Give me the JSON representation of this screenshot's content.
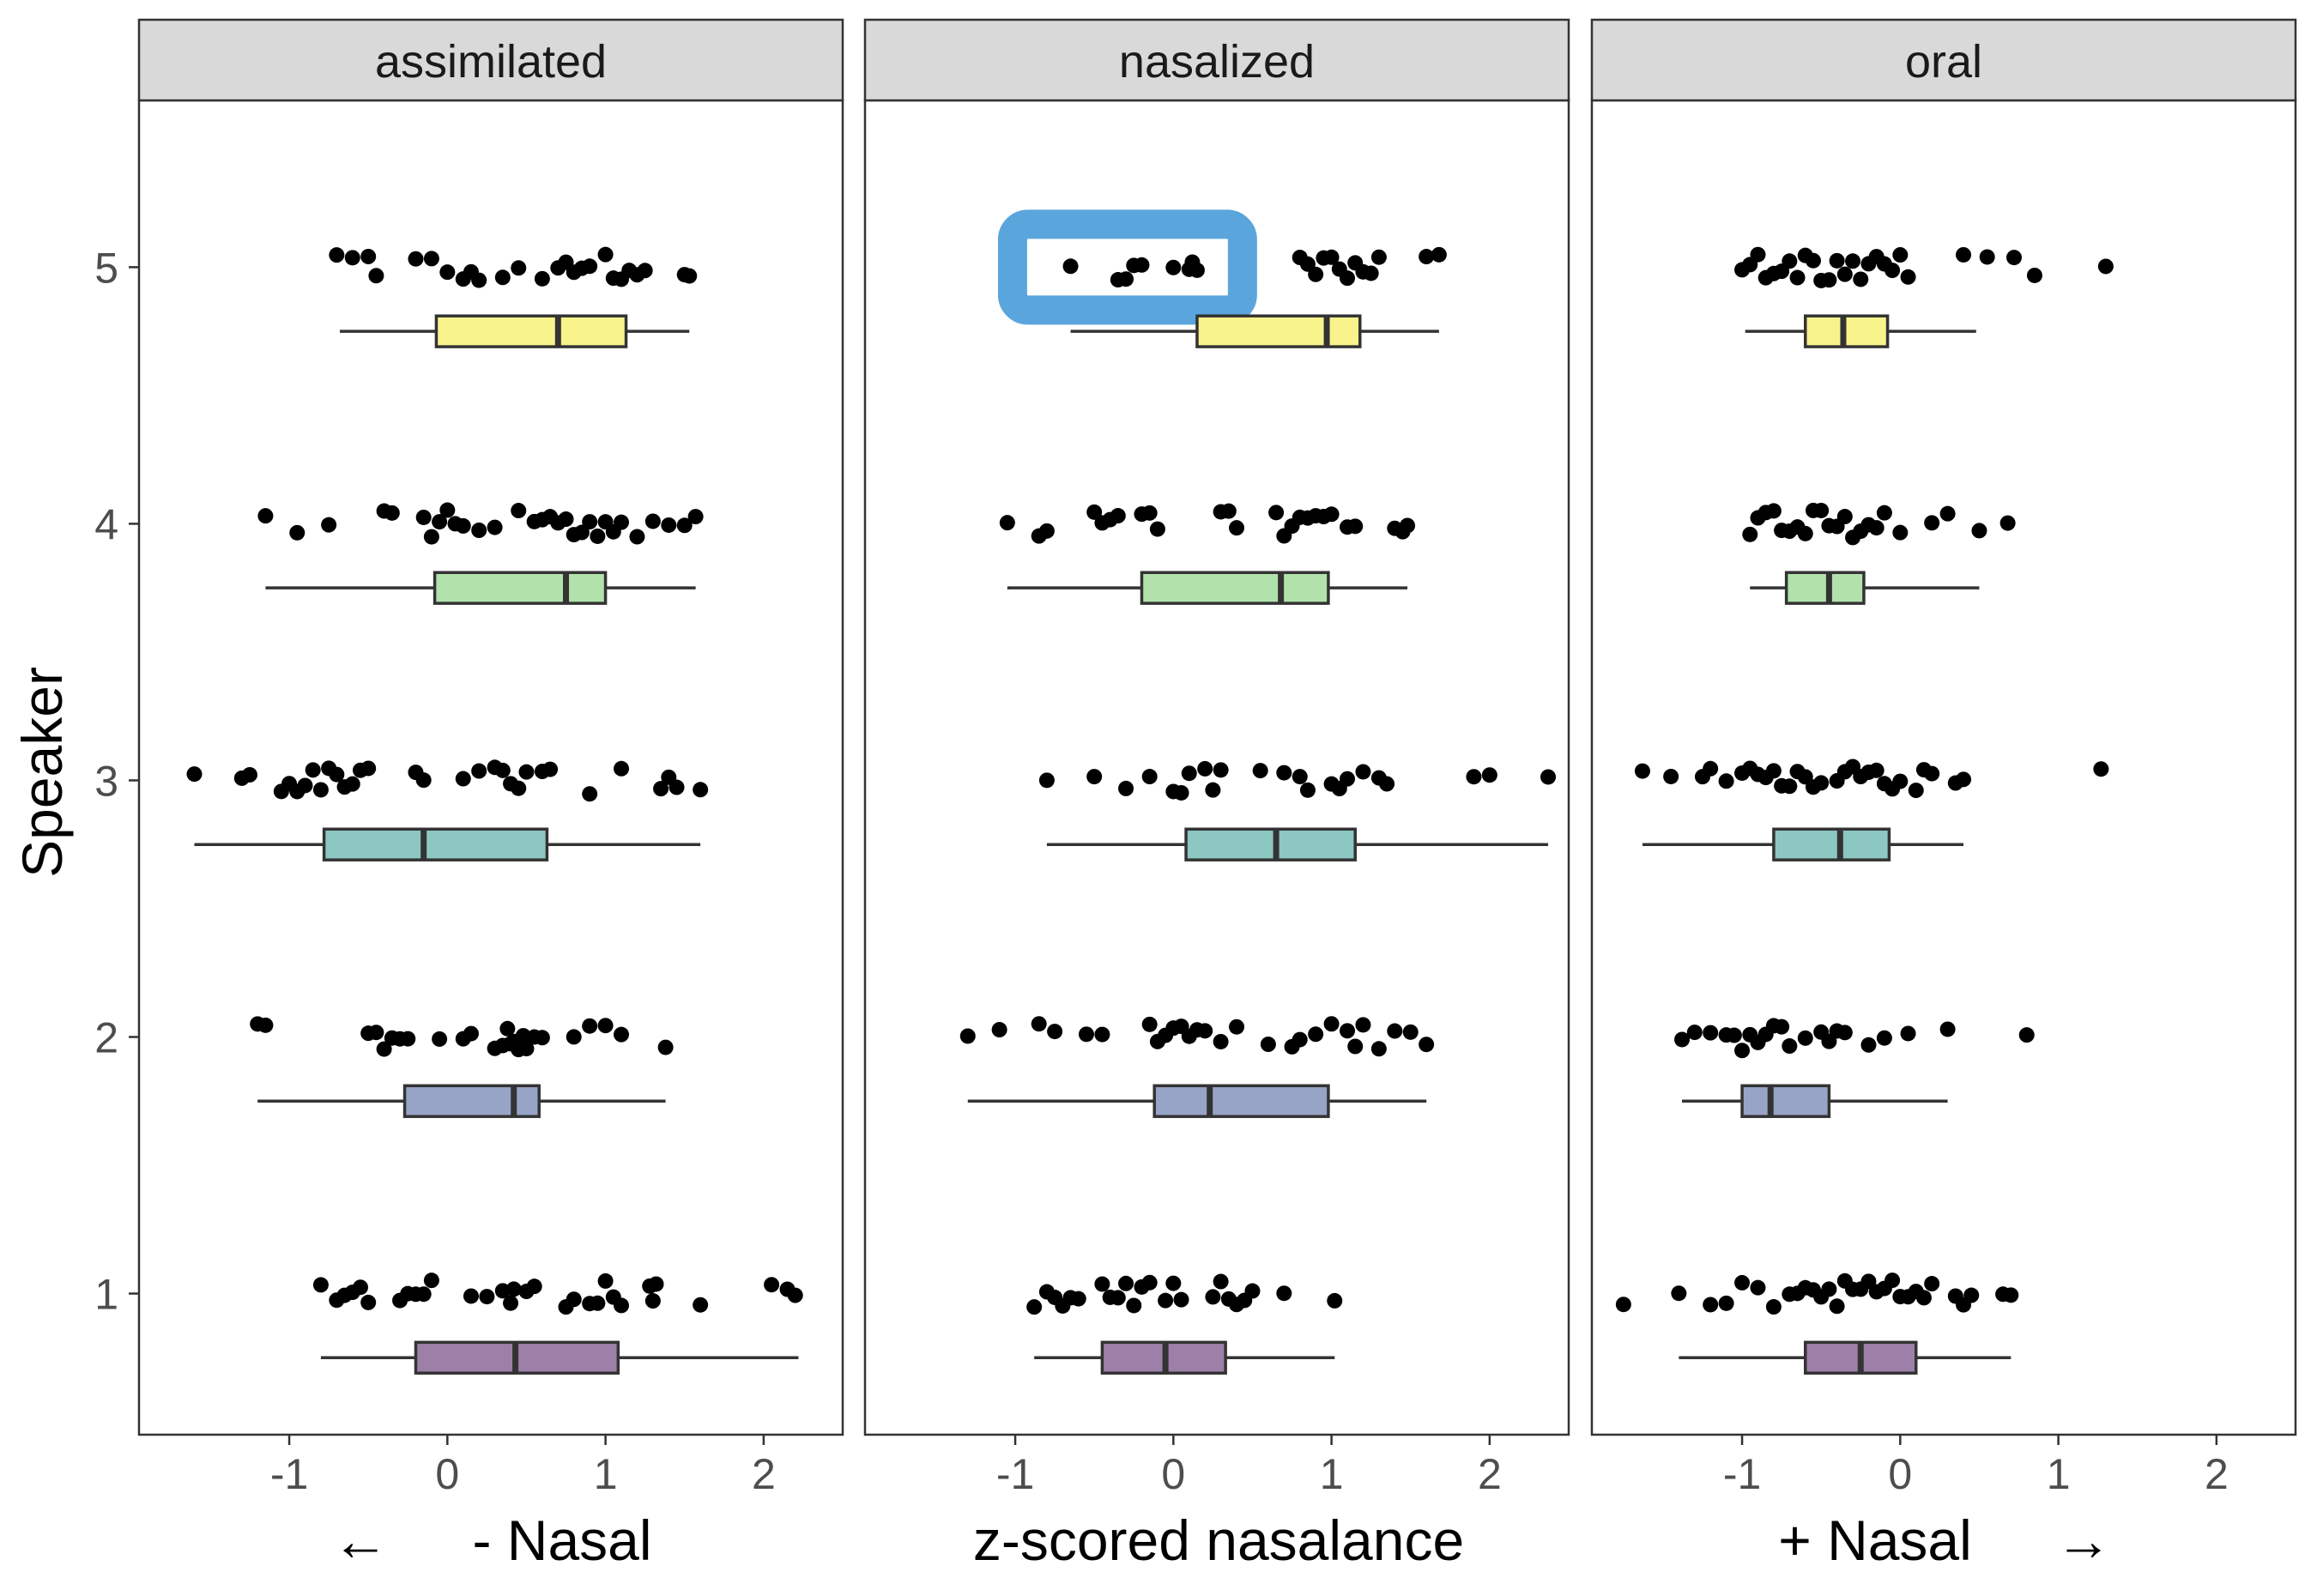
{
  "chart_data": {
    "type": "box",
    "orientation": "horizontal",
    "ylabel": "Speaker",
    "xlabel": "z-scored nasalance",
    "xlabel_left": "- Nasal",
    "xlabel_right": "+ Nasal",
    "arrow_left": "←",
    "arrow_right": "→",
    "xlim": [
      -1.95,
      2.5
    ],
    "ylim": [
      0.45,
      5.65
    ],
    "x_ticks": [
      "-1",
      "0",
      "1",
      "2"
    ],
    "x_tick_values": [
      -1,
      0,
      1,
      2
    ],
    "y_ticks": [
      "1",
      "2",
      "3",
      "4",
      "5"
    ],
    "y_tick_values": [
      1,
      2,
      3,
      4,
      5
    ],
    "grid": false,
    "speaker_colors": {
      "1": "#9e7fa8",
      "2": "#98a4c6",
      "3": "#8cc7c2",
      "4": "#b1e2ac",
      "5": "#f8f38b"
    },
    "highlight": {
      "panel": "nasalized",
      "speaker": 5,
      "x_range": [
        -0.8,
        0.22
      ],
      "color": "#5aa6dc"
    },
    "panels": [
      {
        "name": "assimilated",
        "speakers": [
          {
            "speaker": 1,
            "box": {
              "min": -0.8,
              "q1": -0.2,
              "median": 0.43,
              "q3": 1.08,
              "max": 2.22
            },
            "points": [
              -0.8,
              -0.7,
              -0.65,
              -0.6,
              -0.55,
              -0.5,
              -0.3,
              -0.25,
              -0.2,
              -0.15,
              -0.1,
              0.15,
              0.25,
              0.35,
              0.4,
              0.42,
              0.5,
              0.55,
              0.75,
              0.8,
              0.9,
              0.95,
              1.0,
              1.05,
              1.1,
              1.28,
              1.3,
              1.32,
              1.6,
              2.05,
              2.15,
              2.2
            ]
          },
          {
            "speaker": 2,
            "box": {
              "min": -1.2,
              "q1": -0.27,
              "median": 0.42,
              "q3": 0.58,
              "max": 1.38
            },
            "points": [
              -1.2,
              -1.15,
              -0.5,
              -0.45,
              -0.4,
              -0.35,
              -0.3,
              -0.25,
              -0.05,
              0.1,
              0.15,
              0.3,
              0.35,
              0.38,
              0.4,
              0.42,
              0.45,
              0.48,
              0.5,
              0.55,
              0.6,
              0.8,
              0.9,
              1.0,
              1.1,
              1.38
            ]
          },
          {
            "speaker": 3,
            "box": {
              "min": -1.6,
              "q1": -0.78,
              "median": -0.15,
              "q3": 0.63,
              "max": 1.6
            },
            "points": [
              -1.6,
              -1.3,
              -1.25,
              -1.05,
              -1.0,
              -0.95,
              -0.9,
              -0.85,
              -0.8,
              -0.75,
              -0.7,
              -0.65,
              -0.6,
              -0.55,
              -0.5,
              -0.2,
              -0.15,
              0.1,
              0.2,
              0.3,
              0.35,
              0.4,
              0.45,
              0.5,
              0.6,
              0.65,
              0.9,
              1.1,
              1.35,
              1.4,
              1.45,
              1.6
            ]
          },
          {
            "speaker": 4,
            "box": {
              "min": -1.15,
              "q1": -0.08,
              "median": 0.75,
              "q3": 1.0,
              "max": 1.57
            },
            "points": [
              -1.15,
              -0.95,
              -0.75,
              -0.4,
              -0.35,
              -0.15,
              -0.1,
              -0.05,
              0.0,
              0.05,
              0.1,
              0.2,
              0.3,
              0.45,
              0.55,
              0.6,
              0.65,
              0.7,
              0.75,
              0.8,
              0.85,
              0.9,
              0.95,
              1.0,
              1.05,
              1.1,
              1.2,
              1.3,
              1.4,
              1.5,
              1.57
            ]
          },
          {
            "speaker": 5,
            "box": {
              "min": -0.68,
              "q1": -0.07,
              "median": 0.7,
              "q3": 1.13,
              "max": 1.53
            },
            "points": [
              -0.7,
              -0.6,
              -0.5,
              -0.45,
              -0.2,
              -0.1,
              0.0,
              0.1,
              0.15,
              0.2,
              0.35,
              0.45,
              0.6,
              0.7,
              0.75,
              0.8,
              0.85,
              0.9,
              1.0,
              1.05,
              1.1,
              1.15,
              1.2,
              1.25,
              1.5,
              1.53
            ]
          }
        ]
      },
      {
        "name": "nasalized",
        "speakers": [
          {
            "speaker": 1,
            "box": {
              "min": -0.88,
              "q1": -0.45,
              "median": -0.05,
              "q3": 0.33,
              "max": 1.02
            },
            "points": [
              -0.88,
              -0.8,
              -0.75,
              -0.7,
              -0.65,
              -0.6,
              -0.45,
              -0.4,
              -0.35,
              -0.3,
              -0.25,
              -0.2,
              -0.15,
              -0.05,
              0.0,
              0.05,
              0.25,
              0.3,
              0.35,
              0.4,
              0.45,
              0.5,
              0.7,
              1.02
            ]
          },
          {
            "speaker": 2,
            "box": {
              "min": -1.3,
              "q1": -0.12,
              "median": 0.23,
              "q3": 0.98,
              "max": 1.6
            },
            "points": [
              -1.3,
              -1.1,
              -0.85,
              -0.75,
              -0.55,
              -0.45,
              -0.15,
              -0.1,
              -0.05,
              0.0,
              0.05,
              0.1,
              0.15,
              0.2,
              0.3,
              0.4,
              0.6,
              0.75,
              0.8,
              0.9,
              1.0,
              1.1,
              1.15,
              1.2,
              1.3,
              1.4,
              1.5,
              1.6
            ]
          },
          {
            "speaker": 3,
            "box": {
              "min": -0.8,
              "q1": 0.08,
              "median": 0.65,
              "q3": 1.15,
              "max": 2.37
            },
            "points": [
              -0.8,
              -0.5,
              -0.3,
              -0.15,
              0.0,
              0.05,
              0.1,
              0.2,
              0.25,
              0.3,
              0.55,
              0.7,
              0.8,
              0.85,
              1.0,
              1.05,
              1.1,
              1.2,
              1.3,
              1.35,
              1.9,
              2.0,
              2.37
            ]
          },
          {
            "speaker": 4,
            "box": {
              "min": -1.05,
              "q1": -0.2,
              "median": 0.68,
              "q3": 0.98,
              "max": 1.48
            },
            "points": [
              -1.05,
              -0.85,
              -0.8,
              -0.5,
              -0.45,
              -0.4,
              -0.35,
              -0.2,
              -0.15,
              -0.1,
              0.3,
              0.35,
              0.4,
              0.65,
              0.7,
              0.75,
              0.8,
              0.85,
              0.9,
              0.95,
              1.0,
              1.1,
              1.15,
              1.4,
              1.45,
              1.48
            ]
          },
          {
            "speaker": 5,
            "box": {
              "min": -0.65,
              "q1": 0.15,
              "median": 0.97,
              "q3": 1.18,
              "max": 1.68
            },
            "points": [
              -0.65,
              -0.35,
              -0.3,
              -0.25,
              -0.2,
              0.0,
              0.1,
              0.12,
              0.15,
              0.8,
              0.85,
              0.9,
              0.95,
              1.0,
              1.05,
              1.1,
              1.15,
              1.2,
              1.25,
              1.3,
              1.6,
              1.68
            ]
          }
        ]
      },
      {
        "name": "oral",
        "speakers": [
          {
            "speaker": 1,
            "box": {
              "min": -1.4,
              "q1": -0.6,
              "median": -0.25,
              "q3": 0.1,
              "max": 0.7
            },
            "points": [
              -1.75,
              -1.4,
              -1.2,
              -1.1,
              -1.0,
              -0.9,
              -0.8,
              -0.7,
              -0.65,
              -0.6,
              -0.55,
              -0.5,
              -0.45,
              -0.4,
              -0.35,
              -0.3,
              -0.25,
              -0.2,
              -0.15,
              -0.1,
              -0.05,
              0.0,
              0.05,
              0.1,
              0.15,
              0.2,
              0.35,
              0.4,
              0.45,
              0.65,
              0.7
            ]
          },
          {
            "speaker": 2,
            "box": {
              "min": -1.38,
              "q1": -1.0,
              "median": -0.82,
              "q3": -0.45,
              "max": 0.3
            },
            "points": [
              -1.38,
              -1.3,
              -1.2,
              -1.1,
              -1.05,
              -1.0,
              -0.95,
              -0.9,
              -0.85,
              -0.8,
              -0.75,
              -0.7,
              -0.6,
              -0.5,
              -0.45,
              -0.4,
              -0.35,
              -0.2,
              -0.1,
              0.05,
              0.3,
              0.8
            ]
          },
          {
            "speaker": 3,
            "box": {
              "min": -1.63,
              "q1": -0.8,
              "median": -0.38,
              "q3": -0.07,
              "max": 0.4
            },
            "points": [
              -1.63,
              -1.45,
              -1.25,
              -1.2,
              -1.1,
              -1.0,
              -0.95,
              -0.9,
              -0.85,
              -0.8,
              -0.75,
              -0.7,
              -0.65,
              -0.6,
              -0.55,
              -0.5,
              -0.4,
              -0.35,
              -0.3,
              -0.25,
              -0.2,
              -0.15,
              -0.1,
              -0.05,
              0.0,
              0.1,
              0.15,
              0.2,
              0.35,
              0.4,
              1.27
            ]
          },
          {
            "speaker": 4,
            "box": {
              "min": -0.95,
              "q1": -0.72,
              "median": -0.45,
              "q3": -0.23,
              "max": 0.5
            },
            "points": [
              -0.95,
              -0.9,
              -0.85,
              -0.8,
              -0.75,
              -0.7,
              -0.65,
              -0.6,
              -0.55,
              -0.5,
              -0.45,
              -0.4,
              -0.35,
              -0.3,
              -0.25,
              -0.2,
              -0.15,
              -0.1,
              0.0,
              0.2,
              0.3,
              0.5,
              0.68
            ]
          },
          {
            "speaker": 5,
            "box": {
              "min": -0.98,
              "q1": -0.6,
              "median": -0.36,
              "q3": -0.08,
              "max": 0.48
            },
            "points": [
              -1.0,
              -0.95,
              -0.9,
              -0.85,
              -0.8,
              -0.75,
              -0.7,
              -0.65,
              -0.6,
              -0.55,
              -0.5,
              -0.45,
              -0.4,
              -0.35,
              -0.3,
              -0.25,
              -0.2,
              -0.15,
              -0.1,
              -0.05,
              0.0,
              0.05,
              0.4,
              0.55,
              0.72,
              0.85,
              1.3
            ]
          }
        ]
      }
    ]
  }
}
